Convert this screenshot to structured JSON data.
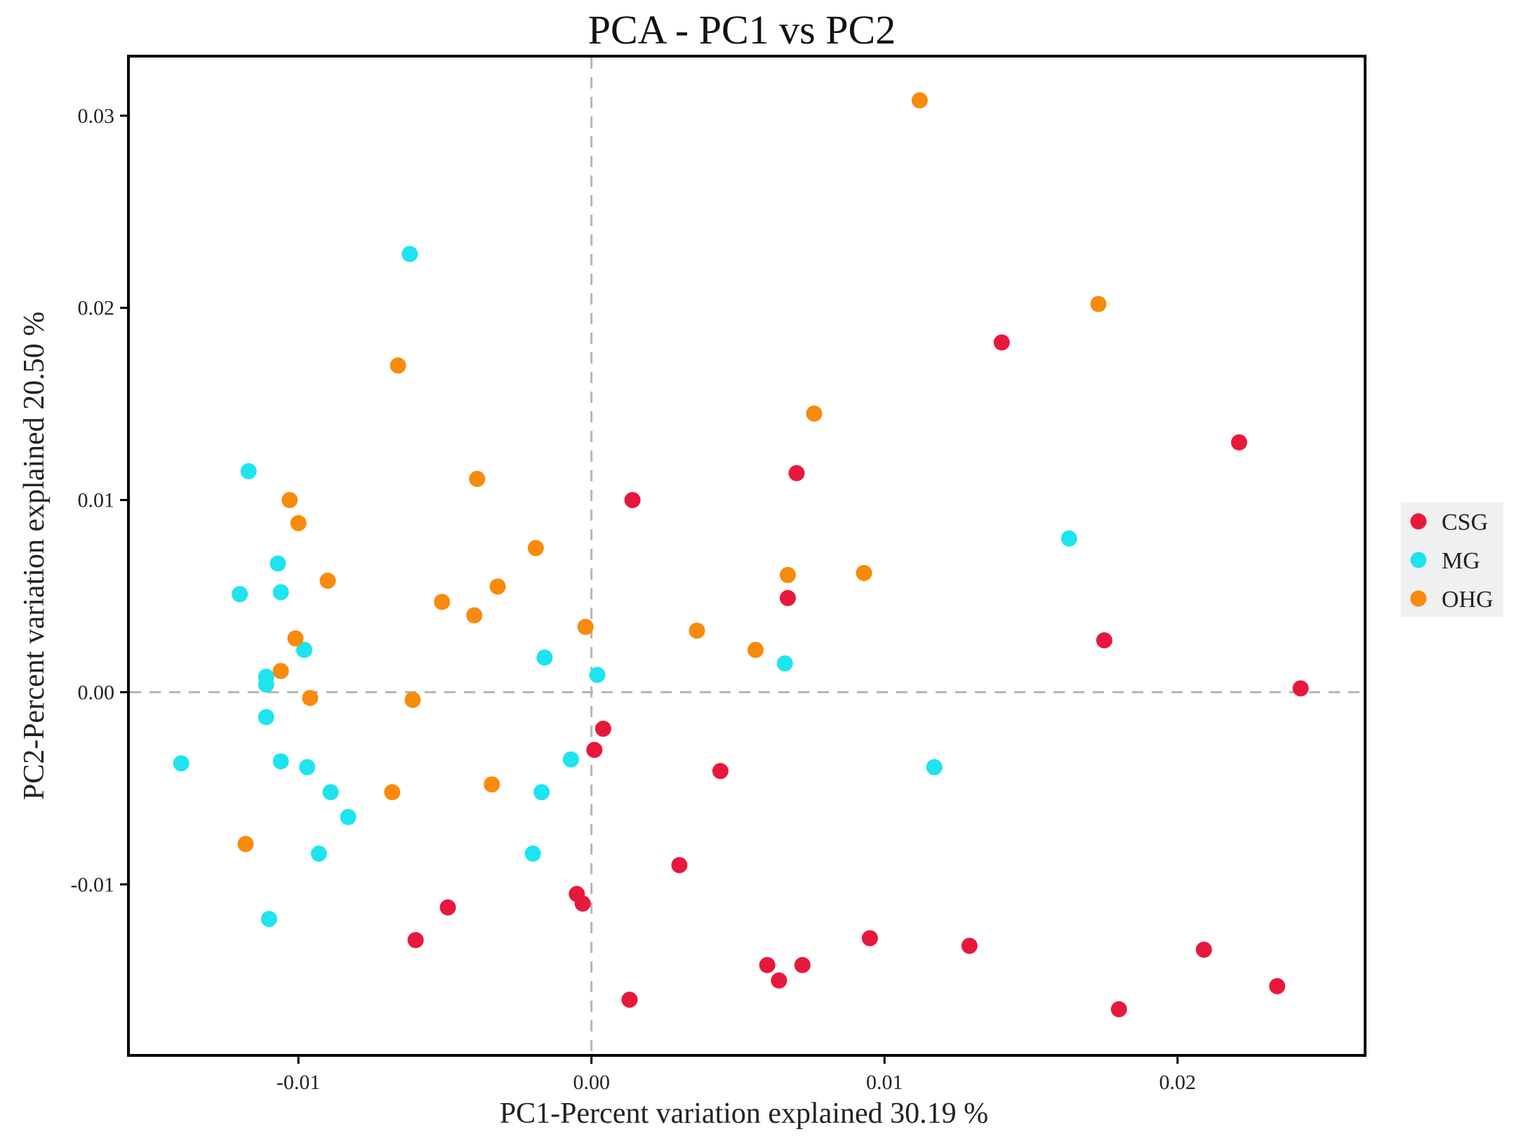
{
  "chart_data": {
    "type": "scatter",
    "title": "PCA - PC1 vs PC2",
    "xlabel": "PC1-Percent variation explained 30.19 %",
    "ylabel": "PC2-Percent variation explained 20.50 %",
    "xlim": [
      -0.0158,
      0.0264
    ],
    "ylim": [
      -0.0189,
      0.0331
    ],
    "x_ticks": [
      -0.01,
      0.0,
      0.01,
      0.02
    ],
    "x_tick_labels": [
      "-0.01",
      "0.00",
      "0.01",
      "0.02"
    ],
    "y_ticks": [
      -0.01,
      0.0,
      0.01,
      0.02,
      0.03
    ],
    "y_tick_labels": [
      "-0.01",
      "0.00",
      "0.01",
      "0.02",
      "0.03"
    ],
    "reference_lines": {
      "x": 0.0,
      "y": 0.0,
      "style": "dashed"
    },
    "legend_position": "right",
    "series": [
      {
        "name": "CSG",
        "color": "#e8183c",
        "points": [
          [
            0.0014,
            0.01
          ],
          [
            0.007,
            0.0114
          ],
          [
            0.014,
            0.0182
          ],
          [
            0.0221,
            0.013
          ],
          [
            0.0067,
            0.0049
          ],
          [
            0.0175,
            0.0027
          ],
          [
            0.0242,
            0.0002
          ],
          [
            0.0004,
            -0.0019
          ],
          [
            0.0001,
            -0.003
          ],
          [
            0.0044,
            -0.0041
          ],
          [
            0.003,
            -0.009
          ],
          [
            -0.0005,
            -0.0105
          ],
          [
            -0.0003,
            -0.011
          ],
          [
            -0.0049,
            -0.0112
          ],
          [
            -0.006,
            -0.0129
          ],
          [
            0.0095,
            -0.0128
          ],
          [
            0.0129,
            -0.0132
          ],
          [
            0.0209,
            -0.0134
          ],
          [
            0.006,
            -0.0142
          ],
          [
            0.0072,
            -0.0142
          ],
          [
            0.0064,
            -0.015
          ],
          [
            0.0013,
            -0.016
          ],
          [
            0.0234,
            -0.0153
          ],
          [
            0.018,
            -0.0165
          ]
        ]
      },
      {
        "name": "MG",
        "color": "#1de4ef",
        "points": [
          [
            -0.0062,
            0.0228
          ],
          [
            -0.0117,
            0.0115
          ],
          [
            -0.0107,
            0.0067
          ],
          [
            -0.012,
            0.0051
          ],
          [
            -0.0106,
            0.0052
          ],
          [
            -0.0098,
            0.0022
          ],
          [
            -0.0111,
            0.0008
          ],
          [
            -0.0111,
            0.0004
          ],
          [
            -0.0111,
            -0.0013
          ],
          [
            -0.014,
            -0.0037
          ],
          [
            -0.0106,
            -0.0036
          ],
          [
            -0.0097,
            -0.0039
          ],
          [
            -0.0089,
            -0.0052
          ],
          [
            -0.0083,
            -0.0065
          ],
          [
            -0.0093,
            -0.0084
          ],
          [
            -0.011,
            -0.0118
          ],
          [
            -0.0016,
            0.0018
          ],
          [
            0.0002,
            0.0009
          ],
          [
            -0.0007,
            -0.0035
          ],
          [
            -0.0017,
            -0.0052
          ],
          [
            -0.002,
            -0.0084
          ],
          [
            0.0066,
            0.0015
          ],
          [
            0.0163,
            0.008
          ],
          [
            0.0117,
            -0.0039
          ]
        ]
      },
      {
        "name": "OHG",
        "color": "#f88a0c",
        "points": [
          [
            0.0112,
            0.0308
          ],
          [
            0.0173,
            0.0202
          ],
          [
            -0.0066,
            0.017
          ],
          [
            0.0076,
            0.0145
          ],
          [
            -0.0039,
            0.0111
          ],
          [
            -0.0103,
            0.01
          ],
          [
            -0.01,
            0.0088
          ],
          [
            -0.0019,
            0.0075
          ],
          [
            -0.009,
            0.0058
          ],
          [
            0.0067,
            0.0061
          ],
          [
            0.0093,
            0.0062
          ],
          [
            -0.0032,
            0.0055
          ],
          [
            -0.0051,
            0.0047
          ],
          [
            -0.004,
            0.004
          ],
          [
            -0.0002,
            0.0034
          ],
          [
            0.0036,
            0.0032
          ],
          [
            -0.0101,
            0.0028
          ],
          [
            0.0056,
            0.0022
          ],
          [
            -0.0106,
            0.0011
          ],
          [
            -0.0096,
            -0.0003
          ],
          [
            -0.0061,
            -0.0004
          ],
          [
            -0.0034,
            -0.0048
          ],
          [
            -0.0068,
            -0.0052
          ],
          [
            -0.0118,
            -0.0079
          ]
        ]
      }
    ]
  }
}
